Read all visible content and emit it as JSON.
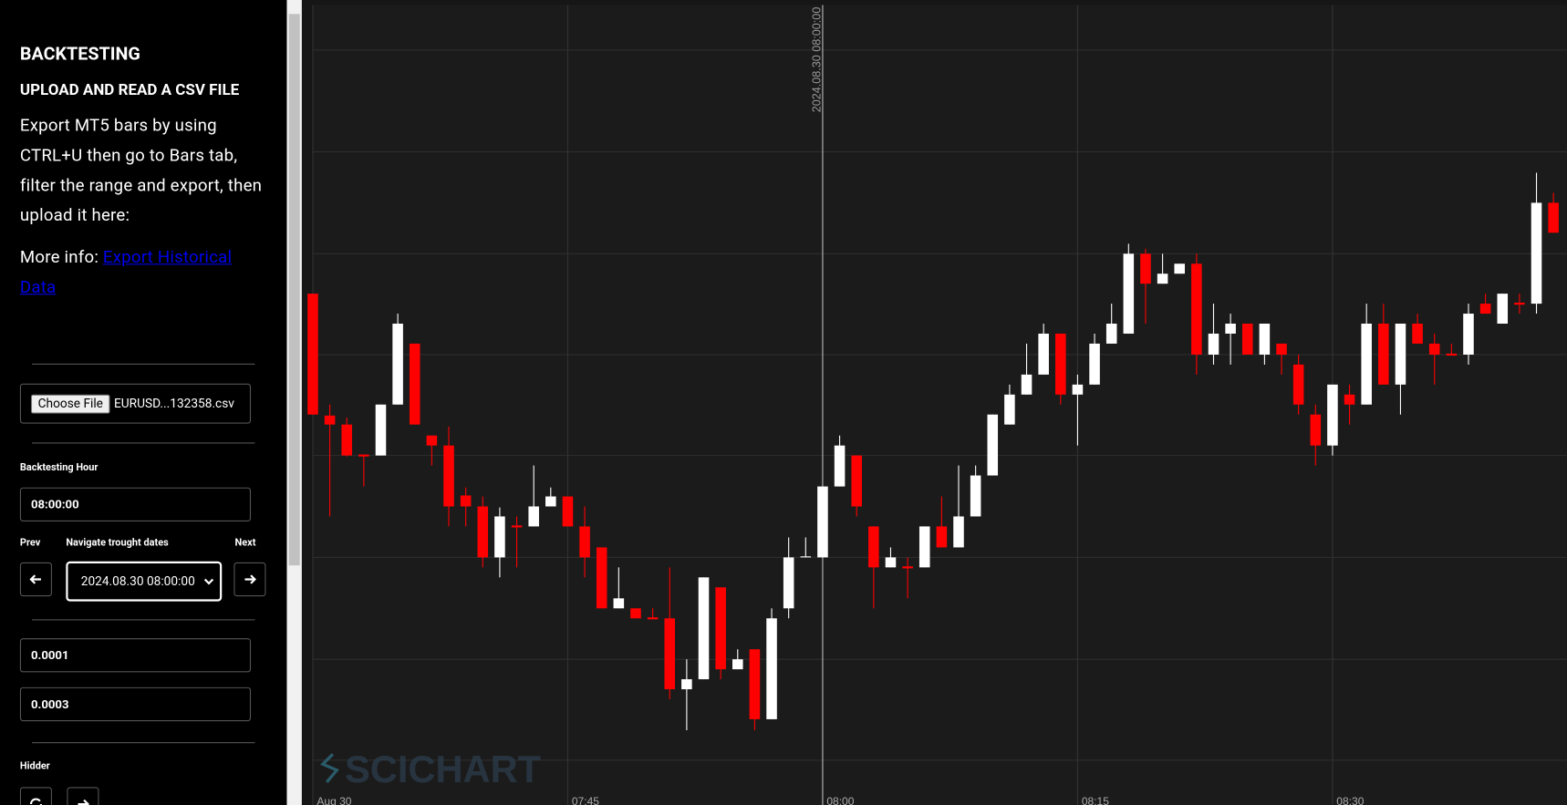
{
  "sidebar": {
    "title": "BACKTESTING",
    "subtitle": "UPLOAD AND READ A CSV FILE",
    "instructions": "Export MT5 bars by using CTRL+U then go to Bars tab, filter the range and export, then upload it here:",
    "more_info": "More info: ",
    "link": "Export Historical Data",
    "file_button": "Choose File",
    "file_name": "EURUSD...132358.csv",
    "hour_label": "Backtesting Hour",
    "hour_value": "08:00:00",
    "prev_label": "Prev",
    "navigate_label": "Navigate trought dates",
    "next_label": "Next",
    "date_value": "2024.08.30 08:00:00",
    "input_1": "0.0001",
    "input_2": "0.0003",
    "hidder_label": "Hidder"
  },
  "chart_data": {
    "type": "candlestick",
    "annotation": "2024.08.30 08:00:00",
    "annotation_x": 30,
    "watermark": "SCICHART",
    "up_color": "#ffffff",
    "down_color": "#ff0000",
    "grid": true,
    "xlim": [
      0,
      73.8
    ],
    "ylim": [
      0,
      801
    ],
    "xticks": [
      {
        "value": 0,
        "label": "Aug 30"
      },
      {
        "value": 15,
        "label": "07:45"
      },
      {
        "value": 30,
        "label": "08:00"
      },
      {
        "value": 45,
        "label": "08:15"
      },
      {
        "value": 60,
        "label": "08:30"
      }
    ],
    "open": [
      512,
      390,
      381,
      351,
      350,
      401,
      462,
      370,
      360,
      310,
      299,
      248,
      280,
      279,
      299,
      309,
      279,
      258,
      197,
      197,
      188,
      187,
      116,
      126,
      218,
      136,
      156,
      86,
      197,
      248,
      248,
      319,
      350,
      279,
      238,
      239,
      238,
      279,
      258,
      289,
      330,
      381,
      411,
      431,
      472,
      411,
      421,
      462,
      472,
      552,
      522,
      532,
      542,
      451,
      472,
      482,
      451,
      462,
      441,
      391,
      360,
      411,
      401,
      482,
      421,
      482,
      462,
      452,
      451,
      502,
      482,
      503,
      502,
      603
    ],
    "high": [
      512,
      401,
      388,
      351,
      401,
      492,
      462,
      370,
      379,
      318,
      309,
      298,
      289,
      340,
      318,
      309,
      299,
      258,
      238,
      197,
      197,
      238,
      146,
      228,
      218,
      156,
      156,
      197,
      268,
      268,
      319,
      370,
      350,
      279,
      258,
      248,
      279,
      309,
      340,
      340,
      391,
      421,
      462,
      482,
      472,
      431,
      472,
      502,
      562,
      557,
      552,
      542,
      552,
      502,
      492,
      482,
      482,
      462,
      451,
      401,
      421,
      421,
      502,
      502,
      482,
      492,
      472,
      462,
      502,
      512,
      512,
      512,
      633,
      613
    ],
    "low": [
      391,
      289,
      349,
      319,
      350,
      401,
      381,
      340,
      279,
      279,
      238,
      228,
      238,
      279,
      299,
      279,
      228,
      197,
      197,
      187,
      186,
      106,
      75,
      126,
      126,
      136,
      75,
      86,
      187,
      248,
      248,
      319,
      289,
      197,
      238,
      207,
      238,
      258,
      258,
      289,
      330,
      381,
      411,
      431,
      401,
      360,
      421,
      462,
      472,
      482,
      522,
      532,
      431,
      441,
      441,
      451,
      441,
      431,
      391,
      340,
      350,
      381,
      401,
      421,
      391,
      462,
      421,
      450,
      441,
      492,
      482,
      492,
      492,
      573
    ],
    "close": [
      391,
      381,
      350,
      349,
      401,
      482,
      381,
      360,
      299,
      299,
      248,
      289,
      278,
      299,
      309,
      279,
      248,
      197,
      207,
      187,
      186,
      116,
      126,
      228,
      136,
      146,
      86,
      187,
      248,
      249,
      319,
      360,
      299,
      238,
      248,
      237,
      279,
      258,
      289,
      330,
      391,
      411,
      431,
      472,
      411,
      421,
      462,
      482,
      552,
      522,
      532,
      542,
      451,
      472,
      482,
      451,
      482,
      451,
      401,
      360,
      421,
      401,
      482,
      421,
      482,
      462,
      451,
      450,
      492,
      492,
      512,
      501,
      603,
      573
    ]
  }
}
